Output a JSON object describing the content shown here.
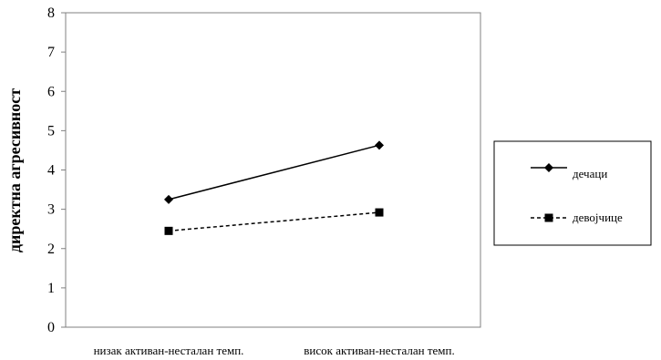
{
  "chart_data": {
    "type": "line",
    "title": "",
    "xlabel": "",
    "ylabel": "директна агресивност",
    "ylim": [
      0,
      8
    ],
    "yticks": [
      "0",
      "1",
      "2",
      "3",
      "4",
      "5",
      "6",
      "7",
      "8"
    ],
    "categories": [
      "низак активан-несталан темп.",
      "висок активан-несталан темп."
    ],
    "series": [
      {
        "name": "дечаци",
        "values": [
          3.25,
          4.63
        ],
        "line_style": "solid",
        "marker": "diamond",
        "color": "#000000"
      },
      {
        "name": "девојчице",
        "values": [
          2.45,
          2.92
        ],
        "line_style": "dashed",
        "marker": "square",
        "color": "#000000"
      }
    ],
    "grid": false,
    "legend_position": "right"
  }
}
